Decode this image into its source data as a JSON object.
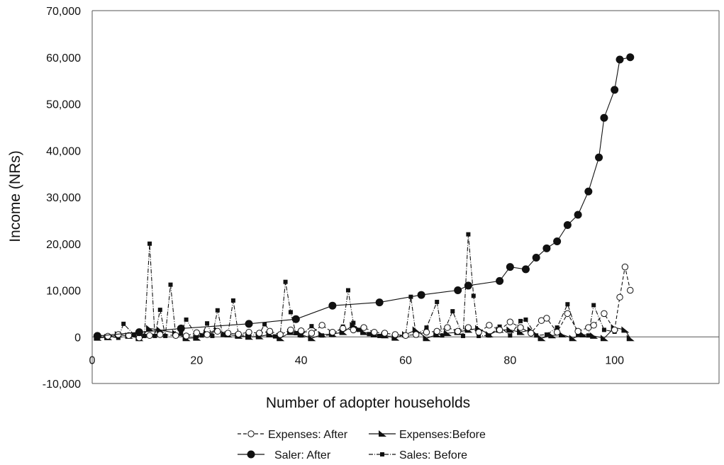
{
  "chart_data": {
    "type": "line",
    "title": "",
    "xlabel": "Number of adopter households",
    "ylabel": "Income (NRs)",
    "xlim": [
      0,
      120
    ],
    "ylim": [
      -10000,
      70000
    ],
    "x_ticks": [
      0,
      20,
      40,
      60,
      80,
      100
    ],
    "x_tick_labels": [
      "0",
      "20",
      "40",
      "60",
      "80",
      "100"
    ],
    "y_ticks": [
      -10000,
      0,
      10000,
      20000,
      30000,
      40000,
      50000,
      60000,
      70000
    ],
    "y_tick_labels": [
      "-10,000",
      "0",
      "10,000",
      "20,000",
      "30,000",
      "40,000",
      "50,000",
      "60,000",
      "70,000"
    ],
    "grid": false,
    "legend_position": "bottom",
    "series": [
      {
        "name": "Expenses: After",
        "style": "dashed",
        "marker": "open-circle",
        "points": [
          [
            1,
            200
          ],
          [
            3,
            150
          ],
          [
            5,
            500
          ],
          [
            7,
            300
          ],
          [
            9,
            -200
          ],
          [
            11,
            300
          ],
          [
            13,
            500
          ],
          [
            16,
            300
          ],
          [
            18,
            200
          ],
          [
            20,
            900
          ],
          [
            22,
            500
          ],
          [
            24,
            1200
          ],
          [
            26,
            800
          ],
          [
            28,
            600
          ],
          [
            30,
            1000
          ],
          [
            32,
            800
          ],
          [
            34,
            1200
          ],
          [
            36,
            500
          ],
          [
            38,
            1500
          ],
          [
            40,
            1300
          ],
          [
            42,
            800
          ],
          [
            44,
            2500
          ],
          [
            46,
            1000
          ],
          [
            48,
            1800
          ],
          [
            50,
            1500
          ],
          [
            52,
            2000
          ],
          [
            54,
            1000
          ],
          [
            56,
            800
          ],
          [
            58,
            500
          ],
          [
            60,
            300
          ],
          [
            62,
            500
          ],
          [
            64,
            1000
          ],
          [
            66,
            1200
          ],
          [
            68,
            2000
          ],
          [
            70,
            1200
          ],
          [
            72,
            2000
          ],
          [
            74,
            1000
          ],
          [
            76,
            2500
          ],
          [
            78,
            1500
          ],
          [
            80,
            3200
          ],
          [
            82,
            2000
          ],
          [
            84,
            800
          ],
          [
            86,
            3500
          ],
          [
            87,
            4000
          ],
          [
            89,
            1000
          ],
          [
            91,
            5000
          ],
          [
            93,
            1200
          ],
          [
            95,
            2000
          ],
          [
            96,
            2500
          ],
          [
            98,
            5000
          ],
          [
            100,
            1500
          ],
          [
            101,
            8500
          ],
          [
            102,
            15000
          ],
          [
            103,
            10000
          ]
        ]
      },
      {
        "name": "Expenses:Before",
        "style": "solid",
        "marker": "filled-triangle",
        "points": [
          [
            1,
            -200
          ],
          [
            3,
            -100
          ],
          [
            5,
            500
          ],
          [
            7,
            200
          ],
          [
            9,
            -300
          ],
          [
            11,
            1800
          ],
          [
            13,
            1500
          ],
          [
            16,
            800
          ],
          [
            18,
            -300
          ],
          [
            20,
            -200
          ],
          [
            22,
            800
          ],
          [
            24,
            1500
          ],
          [
            26,
            500
          ],
          [
            28,
            200
          ],
          [
            30,
            0
          ],
          [
            32,
            100
          ],
          [
            34,
            500
          ],
          [
            36,
            -300
          ],
          [
            38,
            1000
          ],
          [
            40,
            500
          ],
          [
            42,
            -300
          ],
          [
            44,
            500
          ],
          [
            46,
            600
          ],
          [
            48,
            1000
          ],
          [
            50,
            2500
          ],
          [
            52,
            1000
          ],
          [
            54,
            500
          ],
          [
            56,
            300
          ],
          [
            58,
            -200
          ],
          [
            60,
            500
          ],
          [
            62,
            1500
          ],
          [
            64,
            -300
          ],
          [
            66,
            500
          ],
          [
            68,
            800
          ],
          [
            70,
            1000
          ],
          [
            72,
            1500
          ],
          [
            74,
            1800
          ],
          [
            76,
            500
          ],
          [
            78,
            1500
          ],
          [
            80,
            1500
          ],
          [
            82,
            1000
          ],
          [
            84,
            1500
          ],
          [
            86,
            -300
          ],
          [
            88,
            300
          ],
          [
            90,
            500
          ],
          [
            92,
            -300
          ],
          [
            94,
            500
          ],
          [
            96,
            200
          ],
          [
            98,
            -300
          ],
          [
            100,
            2000
          ],
          [
            102,
            1500
          ],
          [
            103,
            -300
          ]
        ]
      },
      {
        "name": "Saler: After",
        "style": "solid",
        "marker": "filled-circle",
        "points": [
          [
            1,
            200
          ],
          [
            9,
            1000
          ],
          [
            17,
            1800
          ],
          [
            30,
            2800
          ],
          [
            39,
            3800
          ],
          [
            46,
            6700
          ],
          [
            55,
            7400
          ],
          [
            63,
            9000
          ],
          [
            70,
            10000
          ],
          [
            72,
            11000
          ],
          [
            78,
            12000
          ],
          [
            80,
            15000
          ],
          [
            83,
            14500
          ],
          [
            85,
            17000
          ],
          [
            87,
            19000
          ],
          [
            89,
            20500
          ],
          [
            91,
            24000
          ],
          [
            93,
            26200
          ],
          [
            95,
            31200
          ],
          [
            97,
            38500
          ],
          [
            98,
            47000
          ],
          [
            100,
            53000
          ],
          [
            101,
            59500
          ],
          [
            103,
            60000
          ]
        ]
      },
      {
        "name": "Sales: Before",
        "style": "dash-dot",
        "marker": "filled-square",
        "points": [
          [
            1,
            200
          ],
          [
            3,
            100
          ],
          [
            5,
            -200
          ],
          [
            6,
            2800
          ],
          [
            8,
            500
          ],
          [
            10,
            200
          ],
          [
            11,
            20000
          ],
          [
            12,
            200
          ],
          [
            13,
            5800
          ],
          [
            14,
            200
          ],
          [
            15,
            11200
          ],
          [
            16,
            200
          ],
          [
            17,
            800
          ],
          [
            18,
            3700
          ],
          [
            20,
            200
          ],
          [
            21,
            300
          ],
          [
            22,
            2900
          ],
          [
            23,
            200
          ],
          [
            24,
            5700
          ],
          [
            25,
            400
          ],
          [
            26,
            700
          ],
          [
            27,
            7800
          ],
          [
            28,
            500
          ],
          [
            30,
            200
          ],
          [
            32,
            600
          ],
          [
            33,
            2700
          ],
          [
            35,
            100
          ],
          [
            36,
            600
          ],
          [
            37,
            11800
          ],
          [
            38,
            5300
          ],
          [
            39,
            800
          ],
          [
            40,
            300
          ],
          [
            42,
            2300
          ],
          [
            44,
            300
          ],
          [
            46,
            400
          ],
          [
            48,
            2200
          ],
          [
            49,
            10000
          ],
          [
            50,
            3000
          ],
          [
            51,
            1500
          ],
          [
            53,
            600
          ],
          [
            55,
            200
          ],
          [
            58,
            200
          ],
          [
            60,
            400
          ],
          [
            61,
            8600
          ],
          [
            62,
            300
          ],
          [
            64,
            2000
          ],
          [
            66,
            7500
          ],
          [
            67,
            300
          ],
          [
            69,
            5500
          ],
          [
            71,
            200
          ],
          [
            72,
            22000
          ],
          [
            73,
            8800
          ],
          [
            74,
            200
          ],
          [
            76,
            300
          ],
          [
            78,
            2200
          ],
          [
            80,
            300
          ],
          [
            82,
            3400
          ],
          [
            83,
            3700
          ],
          [
            85,
            300
          ],
          [
            87,
            500
          ],
          [
            89,
            2000
          ],
          [
            91,
            7000
          ],
          [
            93,
            400
          ],
          [
            95,
            300
          ],
          [
            96,
            6800
          ],
          [
            98,
            1500
          ],
          [
            100,
            1100
          ]
        ]
      }
    ]
  }
}
